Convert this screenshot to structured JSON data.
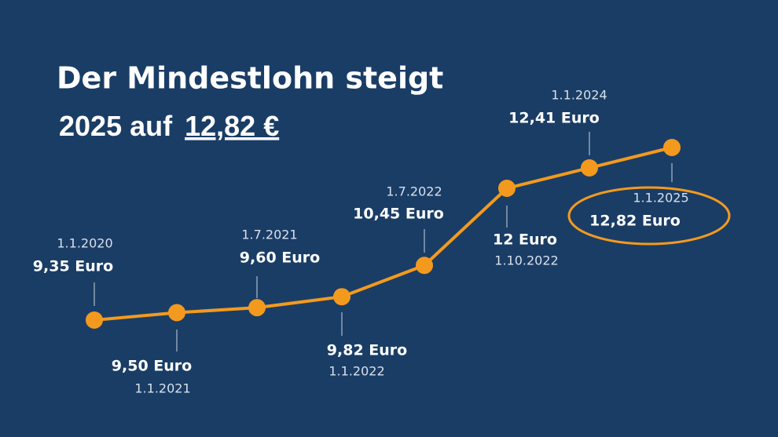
{
  "chart_data": {
    "type": "line",
    "title": "Der Mindestlohn steigt",
    "subtitle": "2025 auf",
    "highlight": "12,82 €",
    "categories": [
      "1.1.2020",
      "1.1.2021",
      "1.7.2021",
      "1.1.2022",
      "1.7.2022",
      "1.10.2022",
      "1.1.2024",
      "1.1.2025"
    ],
    "values": [
      9.35,
      9.5,
      9.6,
      9.82,
      10.45,
      12,
      12.41,
      12.82
    ],
    "value_labels": [
      "9,35 Euro",
      "9,50 Euro",
      "9,60 Euro",
      "9,82 Euro",
      "10,45 Euro",
      "12 Euro",
      "12,41 Euro",
      "12,82 Euro"
    ],
    "color": "#f39a1e"
  }
}
